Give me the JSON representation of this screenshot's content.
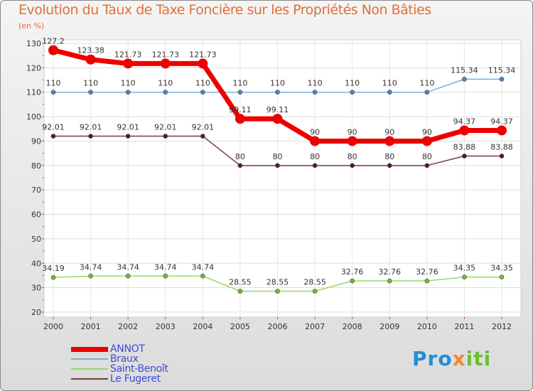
{
  "chart_data": {
    "type": "line",
    "title": "Evolution du Taux de Taxe Foncière sur les Propriétés Non Bâties",
    "ylabel": "(en %)",
    "xlabel": "",
    "ylim": [
      20,
      130
    ],
    "yticks": [
      20,
      30,
      40,
      50,
      60,
      70,
      80,
      90,
      100,
      110,
      120,
      130
    ],
    "grid": true,
    "x": [
      "2000",
      "2001",
      "2002",
      "2003",
      "2004",
      "2005",
      "2006",
      "2007",
      "2008",
      "2009",
      "2010",
      "2011",
      "2012"
    ],
    "series": [
      {
        "name": "ANNOT",
        "color": "#ee0000",
        "values": [
          127.2,
          123.38,
          121.73,
          121.73,
          121.73,
          99.11,
          99.11,
          90,
          90,
          90,
          90,
          94.37,
          94.37
        ],
        "labels": [
          "127.2",
          "123.38",
          "121.73",
          "121.73",
          "121.73",
          "99.11",
          "99.11",
          "90",
          "90",
          "90",
          "90",
          "94.37",
          "94.37"
        ]
      },
      {
        "name": "Braux",
        "color": "#7fb0d8",
        "values": [
          110,
          110,
          110,
          110,
          110,
          110,
          110,
          110,
          110,
          110,
          110,
          115.34,
          115.34
        ],
        "labels": [
          "110",
          "110",
          "110",
          "110",
          "110",
          "110",
          "110",
          "110",
          "110",
          "110",
          "110",
          "115.34",
          "115.34"
        ]
      },
      {
        "name": "Saint-Benoît",
        "color": "#99d96b",
        "values": [
          34.19,
          34.74,
          34.74,
          34.74,
          34.74,
          28.55,
          28.55,
          28.55,
          32.76,
          32.76,
          32.76,
          34.35,
          34.35
        ],
        "labels": [
          "34.19",
          "34.74",
          "34.74",
          "34.74",
          "34.74",
          "28.55",
          "28.55",
          "28.55",
          "32.76",
          "32.76",
          "32.76",
          "34.35",
          "34.35"
        ]
      },
      {
        "name": "Le Fugeret",
        "color": "#7a3b3b",
        "values": [
          92.01,
          92.01,
          92.01,
          92.01,
          92.01,
          80,
          80,
          80,
          80,
          80,
          80,
          83.88,
          83.88
        ],
        "labels": [
          "92.01",
          "92.01",
          "92.01",
          "92.01",
          "92.01",
          "80",
          "80",
          "80",
          "80",
          "80",
          "80",
          "83.88",
          "83.88"
        ]
      }
    ],
    "legend_position": "bottom-left"
  },
  "logo": {
    "part1": "Pro",
    "part2": "x",
    "part3": "iti"
  }
}
